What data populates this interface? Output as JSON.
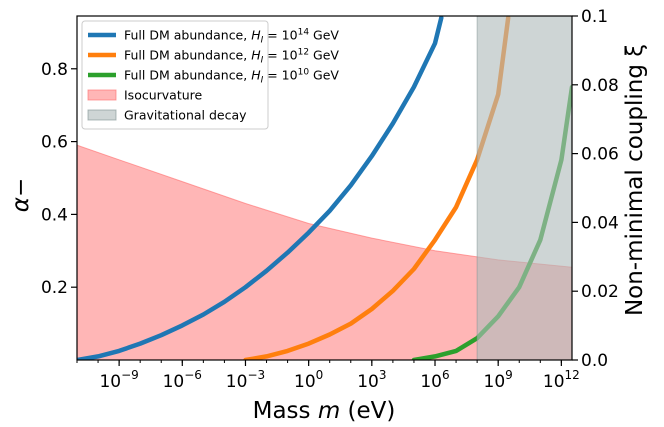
{
  "chart_data": {
    "type": "area",
    "xlabel": "Mass m (eV)",
    "ylabel_left": "α−",
    "ylabel_right": "Non-minimal coupling ξ",
    "x_scale": "log",
    "xlim": [
      1e-11,
      3200000000000.0
    ],
    "ylim_left": [
      0,
      0.945
    ],
    "ylim_right": [
      0,
      0.1
    ],
    "x_tick_labels": [
      "10^-9",
      "10^-6",
      "10^-3",
      "10^0",
      "10^3",
      "10^6",
      "10^9",
      "10^12"
    ],
    "left_tick_labels": [
      "0.2",
      "0.4",
      "0.6",
      "0.8"
    ],
    "right_tick_labels": [
      "0.0",
      "0.02",
      "0.04",
      "0.06",
      "0.08",
      "0.1"
    ],
    "legend_position": "top-left",
    "grid": false,
    "series": [
      {
        "name": "Full DM abundance, H_I = 10^14 GeV",
        "label_pre": "Full DM abundance, ",
        "label_sup": "14",
        "color": "#1f77b4",
        "type": "line",
        "axis": "left",
        "x": [
          1e-11,
          1e-10,
          1e-09,
          1e-08,
          1e-07,
          1e-06,
          1e-05,
          0.0001,
          0.001,
          0.01,
          0.1,
          1,
          10,
          100,
          1000.0,
          10000.0,
          100000.0,
          1000000.0,
          2000000.0
        ],
        "y": [
          0.0,
          0.01,
          0.025,
          0.045,
          0.068,
          0.095,
          0.125,
          0.16,
          0.2,
          0.245,
          0.295,
          0.35,
          0.41,
          0.48,
          0.56,
          0.65,
          0.75,
          0.87,
          0.94
        ]
      },
      {
        "name": "Full DM abundance, H_I = 10^12 GeV",
        "label_pre": "Full DM abundance, ",
        "label_sup": "12",
        "color": "#ff7f0e",
        "type": "line",
        "axis": "left",
        "x": [
          0.001,
          0.01,
          0.1,
          1,
          10,
          100,
          1000.0,
          10000.0,
          100000.0,
          1000000.0,
          10000000.0,
          100000000.0,
          1000000000.0,
          3000000000.0
        ],
        "y": [
          0.0,
          0.01,
          0.025,
          0.045,
          0.07,
          0.1,
          0.14,
          0.19,
          0.25,
          0.33,
          0.42,
          0.55,
          0.73,
          0.94
        ]
      },
      {
        "name": "Full DM abundance, H_I = 10^10 GeV",
        "label_pre": "Full DM abundance, ",
        "label_sup": "10",
        "color": "#2ca02c",
        "type": "line",
        "axis": "left",
        "x": [
          100000.0,
          1000000.0,
          10000000.0,
          100000000.0,
          1000000000.0,
          10000000000.0,
          100000000000.0,
          1000000000000.0,
          3200000000000.0
        ],
        "y": [
          0.0,
          0.01,
          0.025,
          0.06,
          0.12,
          0.2,
          0.33,
          0.55,
          0.75
        ]
      },
      {
        "name": "Isocurvature",
        "color": "#ff9e9e",
        "type": "area",
        "axis": "left",
        "x": [
          1e-11,
          1e-09,
          1e-06,
          0.001,
          1,
          1000.0,
          1000000.0,
          1000000000.0,
          3200000000000.0
        ],
        "y": [
          0.59,
          0.55,
          0.49,
          0.43,
          0.375,
          0.335,
          0.3,
          0.275,
          0.255
        ]
      },
      {
        "name": "Gravitational decay",
        "color": "#b0bcbc",
        "type": "band",
        "axis": "left",
        "x_range": [
          100000000.0,
          3200000000000.0
        ]
      }
    ]
  }
}
